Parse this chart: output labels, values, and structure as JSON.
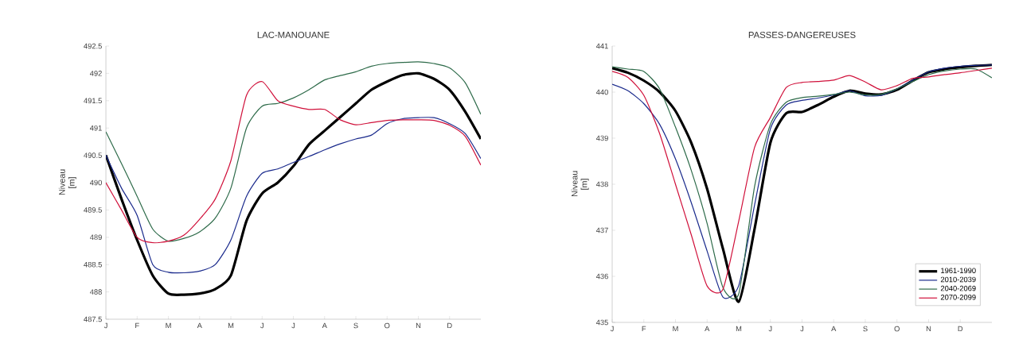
{
  "chart_data": [
    {
      "type": "line",
      "title": "LAC-MANOUANE",
      "ylabel": "Niveau [m]",
      "ylim": [
        487.5,
        492.5
      ],
      "categories": [
        "J",
        null,
        "F",
        null,
        "M",
        null,
        "A",
        null,
        "M",
        null,
        "J",
        null,
        "J",
        null,
        "A",
        null,
        "S",
        null,
        "O",
        null,
        "N",
        null,
        "D",
        null,
        null
      ],
      "yticks": [
        487.5,
        488,
        488.5,
        489,
        489.5,
        490,
        490.5,
        491,
        491.5,
        492,
        492.5
      ],
      "grid": false,
      "legend": false,
      "marker": "none",
      "line_style": "solid",
      "series": [
        {
          "color": "#000000",
          "values": [
            490.5,
            489.7,
            488.95,
            488.3,
            487.97,
            487.95,
            487.97,
            488.05,
            488.3,
            489.3,
            489.8,
            490.0,
            490.3,
            490.7,
            490.95,
            491.2,
            491.45,
            491.7,
            491.85,
            491.97,
            492.0,
            491.9,
            491.7,
            491.3,
            490.8
          ]
        },
        {
          "color": "#1a2a8c",
          "values": [
            490.5,
            489.9,
            489.4,
            488.5,
            488.36,
            488.35,
            488.38,
            488.5,
            488.95,
            489.75,
            490.17,
            490.25,
            490.37,
            490.48,
            490.6,
            490.71,
            490.8,
            490.87,
            491.08,
            491.17,
            491.19,
            491.19,
            491.08,
            490.9,
            490.44
          ]
        },
        {
          "color": "#2e6b4a",
          "values": [
            490.93,
            490.35,
            489.75,
            489.15,
            488.93,
            488.98,
            489.1,
            489.35,
            489.9,
            491.0,
            491.4,
            491.45,
            491.55,
            491.7,
            491.88,
            491.96,
            492.03,
            492.13,
            492.18,
            492.2,
            492.21,
            492.18,
            492.1,
            491.83,
            491.25
          ]
        },
        {
          "color": "#d0103a",
          "values": [
            490.0,
            489.5,
            489.0,
            488.9,
            488.93,
            489.04,
            489.33,
            489.7,
            490.4,
            491.6,
            491.85,
            491.5,
            491.4,
            491.34,
            491.34,
            491.15,
            491.06,
            491.1,
            491.14,
            491.15,
            491.15,
            491.14,
            491.05,
            490.85,
            490.32
          ]
        }
      ]
    },
    {
      "type": "line",
      "title": "PASSES-DANGEREUSES",
      "ylabel": "Niveau [m]",
      "ylim": [
        435,
        441
      ],
      "categories": [
        "J",
        null,
        "F",
        null,
        "M",
        null,
        "A",
        null,
        "M",
        null,
        "J",
        null,
        "J",
        null,
        "A",
        null,
        "S",
        null,
        "O",
        null,
        "N",
        null,
        "D",
        null,
        null
      ],
      "yticks": [
        435,
        436,
        437,
        438,
        439,
        440,
        441
      ],
      "grid": false,
      "legend": "bottom right",
      "marker": "none",
      "line_style": "solid",
      "series": [
        {
          "name": "1961-1990",
          "color": "#000000",
          "values": [
            440.52,
            440.42,
            440.25,
            440.0,
            439.59,
            438.9,
            437.9,
            436.6,
            435.45,
            437.03,
            438.9,
            439.54,
            439.57,
            439.72,
            439.9,
            440.03,
            439.97,
            439.95,
            440.05,
            440.25,
            440.43,
            440.5,
            440.54,
            440.57,
            440.59
          ]
        },
        {
          "name": "2010-2039",
          "color": "#1a2a8c",
          "values": [
            440.17,
            440.03,
            439.75,
            439.3,
            438.55,
            437.6,
            436.55,
            435.55,
            435.8,
            437.55,
            439.2,
            439.72,
            439.82,
            439.87,
            439.94,
            440.03,
            439.92,
            439.93,
            440.07,
            440.26,
            440.44,
            440.52,
            440.56,
            440.58,
            440.59
          ]
        },
        {
          "name": "2040-2069",
          "color": "#2e6b4a",
          "values": [
            440.55,
            440.5,
            440.45,
            440.07,
            439.24,
            438.3,
            437.15,
            435.76,
            435.62,
            437.95,
            439.3,
            439.78,
            439.88,
            439.91,
            439.95,
            440.0,
            439.94,
            439.95,
            440.07,
            440.23,
            440.38,
            440.46,
            440.5,
            440.5,
            440.31
          ]
        },
        {
          "name": "2070-2099",
          "color": "#d0103a",
          "values": [
            440.45,
            440.32,
            439.93,
            439.1,
            438.0,
            436.9,
            435.79,
            435.72,
            437.2,
            438.8,
            439.45,
            440.1,
            440.21,
            440.23,
            440.26,
            440.36,
            440.22,
            440.05,
            440.14,
            440.3,
            440.33,
            440.38,
            440.42,
            440.47,
            440.52
          ]
        }
      ]
    }
  ]
}
